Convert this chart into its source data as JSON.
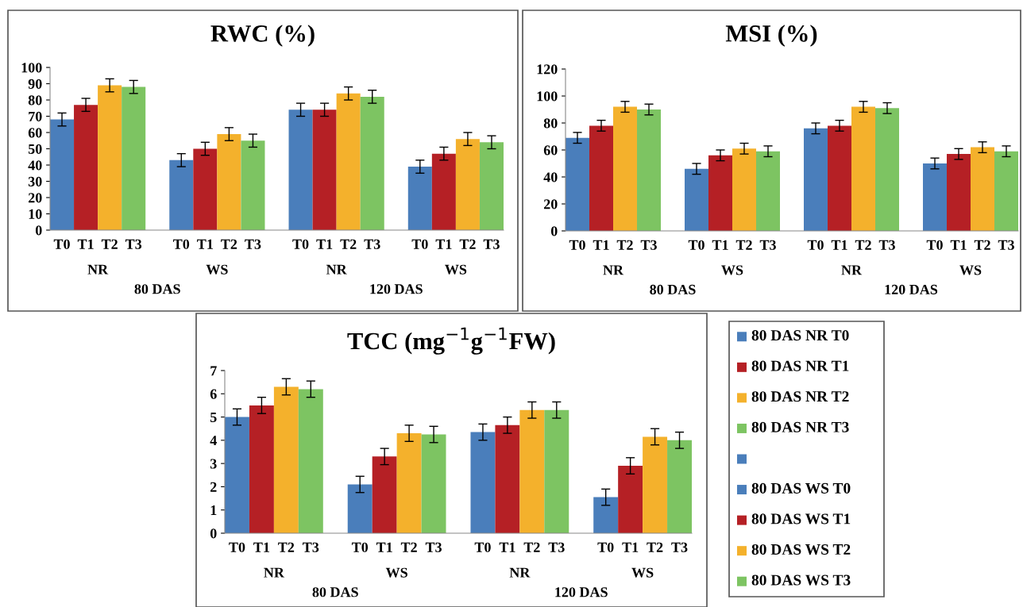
{
  "chart_data": [
    {
      "type": "bar",
      "title": "RWC (%)",
      "categories": [
        "T0",
        "T1",
        "T2",
        "T3",
        null,
        "T0",
        "T1",
        "T2",
        "T3",
        null,
        "T0",
        "T1",
        "T2",
        "T3",
        null,
        "T0",
        "T1",
        "T2",
        "T3"
      ],
      "series": [
        {
          "values": [
            68,
            77,
            89,
            88,
            null,
            43,
            50,
            59,
            55,
            null,
            74,
            74,
            84,
            82,
            null,
            39,
            47,
            56,
            54
          ],
          "errors": [
            4,
            4,
            4,
            4,
            null,
            4,
            4,
            4,
            4,
            null,
            4,
            4,
            4,
            4,
            null,
            4,
            4,
            4,
            4
          ],
          "colors": [
            "#4a7ebb",
            "#b52025",
            "#f4b12c",
            "#7dc462",
            null,
            "#4a7ebb",
            "#b52025",
            "#f4b12c",
            "#7dc462",
            null,
            "#4a7ebb",
            "#b52025",
            "#f4b12c",
            "#7dc462",
            null,
            "#4a7ebb",
            "#b52025",
            "#f4b12c",
            "#7dc462"
          ]
        }
      ],
      "ylim": [
        0,
        100
      ],
      "yticks": [
        0,
        10,
        20,
        30,
        40,
        50,
        60,
        70,
        80,
        90,
        100
      ],
      "annotations": [
        "NR",
        "WS",
        "NR",
        "WS",
        "80 DAS",
        "120 DAS"
      ]
    },
    {
      "type": "bar",
      "title": "MSI (%)",
      "categories": [
        "T0",
        "T1",
        "T2",
        "T3",
        null,
        "T0",
        "T1",
        "T2",
        "T3",
        null,
        "T0",
        "T1",
        "T2",
        "T3",
        null,
        "T0",
        "T1",
        "T2",
        "T3"
      ],
      "series": [
        {
          "values": [
            69,
            78,
            92,
            90,
            null,
            46,
            56,
            61,
            59,
            null,
            76,
            78,
            92,
            91,
            null,
            50,
            57,
            62,
            59
          ],
          "errors": [
            4,
            4,
            4,
            4,
            null,
            4,
            4,
            4,
            4,
            null,
            4,
            4,
            4,
            4,
            null,
            4,
            4,
            4,
            4
          ],
          "colors": [
            "#4a7ebb",
            "#b52025",
            "#f4b12c",
            "#7dc462",
            null,
            "#4a7ebb",
            "#b52025",
            "#f4b12c",
            "#7dc462",
            null,
            "#4a7ebb",
            "#b52025",
            "#f4b12c",
            "#7dc462",
            null,
            "#4a7ebb",
            "#b52025",
            "#f4b12c",
            "#7dc462"
          ]
        }
      ],
      "ylim": [
        0,
        120
      ],
      "yticks": [
        0,
        20,
        40,
        60,
        80,
        100,
        120
      ],
      "annotations": [
        "NR",
        "WS",
        "NR",
        "WS",
        "80 DAS",
        "120 DAS"
      ]
    },
    {
      "type": "bar",
      "title": "TCC (mg$^{−1}$g$^{−1}$FW)",
      "categories": [
        "T0",
        "T1",
        "T2",
        "T3",
        null,
        "T0",
        "T1",
        "T2",
        "T3",
        null,
        "T0",
        "T1",
        "T2",
        "T3",
        null,
        "T0",
        "T1",
        "T2",
        "T3"
      ],
      "series": [
        {
          "values": [
            5.0,
            5.5,
            6.3,
            6.2,
            null,
            2.1,
            3.3,
            4.3,
            4.25,
            null,
            4.35,
            4.65,
            5.3,
            5.3,
            null,
            1.55,
            2.9,
            4.15,
            4.0
          ],
          "errors": [
            0.35,
            0.35,
            0.35,
            0.35,
            null,
            0.35,
            0.35,
            0.35,
            0.35,
            null,
            0.35,
            0.35,
            0.35,
            0.35,
            null,
            0.35,
            0.35,
            0.35,
            0.35
          ],
          "colors": [
            "#4a7ebb",
            "#b52025",
            "#f4b12c",
            "#7dc462",
            null,
            "#4a7ebb",
            "#b52025",
            "#f4b12c",
            "#7dc462",
            null,
            "#4a7ebb",
            "#b52025",
            "#f4b12c",
            "#7dc462",
            null,
            "#4a7ebb",
            "#b52025",
            "#f4b12c",
            "#7dc462"
          ]
        }
      ],
      "ylim": [
        0,
        7
      ],
      "yticks": [
        0,
        1,
        2,
        3,
        4,
        5,
        6,
        7
      ],
      "annotations": [
        "NR",
        "WS",
        "NR",
        "WS",
        "80 DAS",
        "120 DAS"
      ]
    },
    {
      "type": "other",
      "categories": [
        "80 DAS NR T0",
        "80 DAS NR T1",
        "80 DAS NR T2",
        "80 DAS NR T3",
        null,
        "80 DAS WS T0",
        "80 DAS WS T1",
        "80 DAS WS T2",
        "80 DAS WS T3"
      ],
      "colors": [
        "#4a7ebb",
        "#b52025",
        "#f4b12c",
        "#7dc462",
        "#4a7ebb",
        "#4a7ebb",
        "#b52025",
        "#f4b12c",
        "#7dc462"
      ]
    }
  ]
}
